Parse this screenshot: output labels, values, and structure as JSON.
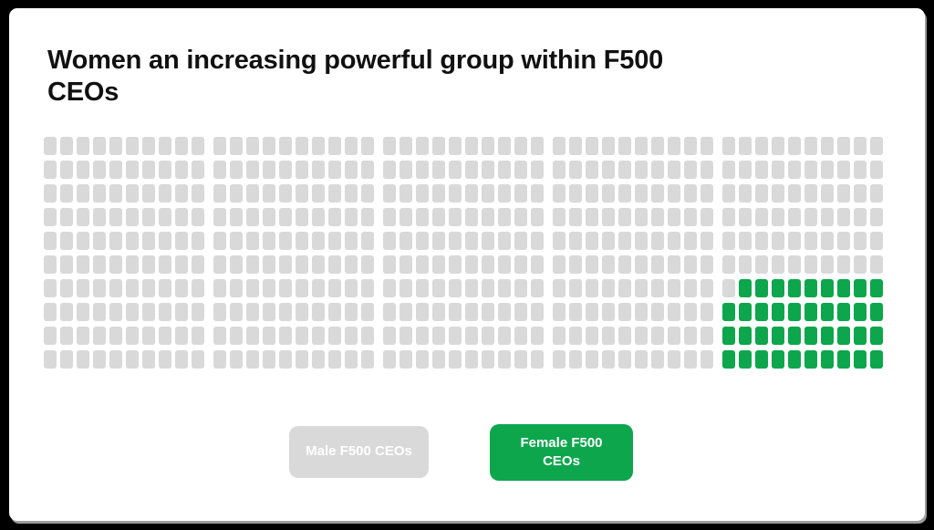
{
  "page": {
    "background_color": "#000000",
    "card_background_color": "#FFFFFF",
    "title_color": "#111111"
  },
  "header": {
    "title": "Women an increasing powerful group within F500 CEOs",
    "title_lines": [
      "Women an increasing powerful group within F500",
      "CEOs"
    ]
  },
  "legend": {
    "male": {
      "label": "Male F500 CEOs",
      "color": "#D9D9D9",
      "text_color": "#FFFFFF"
    },
    "female": {
      "label": "Female F500 CEOs",
      "color": "#0DA64D",
      "text_color": "#FFFFFF"
    }
  },
  "chart_data": {
    "type": "waffle",
    "title": "Women an increasing powerful group within F500 CEOs",
    "rows": 10,
    "cols": 50,
    "group_size": 10,
    "total_units": 500,
    "series": [
      {
        "name": "Male F500 CEOs",
        "value": 461,
        "color": "#D9D9D9"
      },
      {
        "name": "Female F500 CEOs",
        "value": 39,
        "color": "#0DA64D"
      }
    ],
    "female_fill": "bottom-right block, right-aligned rows filled from bottom within last 10-column group",
    "legend_position": "bottom",
    "grid_gaps": {
      "cell_gap": 4,
      "group_gap": 10,
      "row_gap": 6
    }
  }
}
